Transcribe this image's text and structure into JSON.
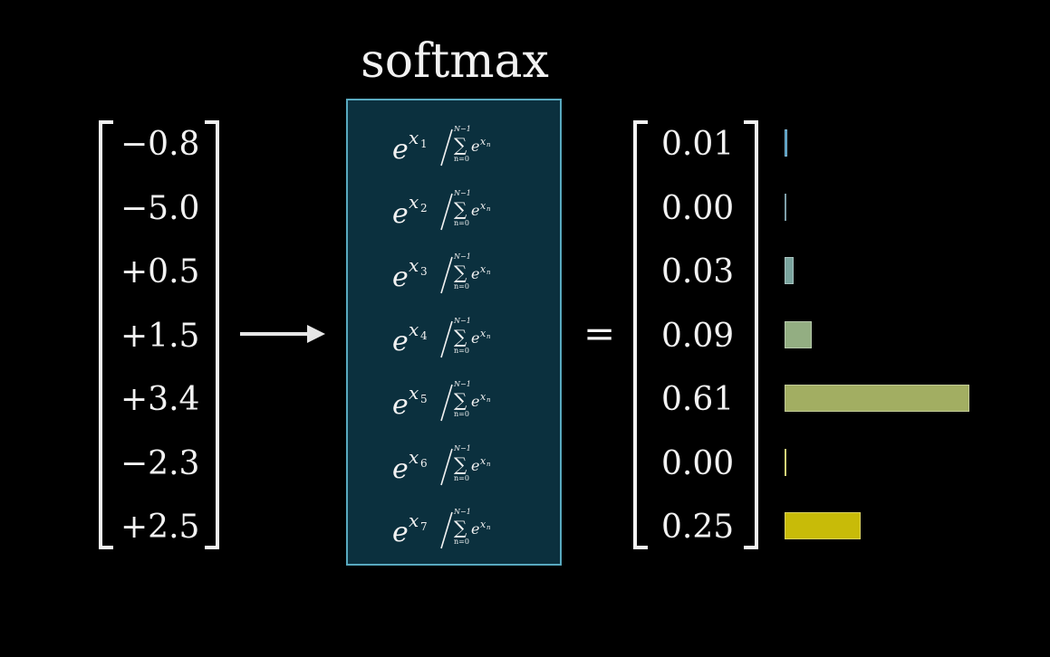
{
  "title": "softmax",
  "inputs": [
    "−0.8",
    "−5.0",
    "+0.5",
    "+1.5",
    "+3.4",
    "−2.3",
    "+2.5"
  ],
  "formula": {
    "base": "e",
    "subscripts": [
      "1",
      "2",
      "3",
      "4",
      "5",
      "6",
      "7"
    ],
    "sum_upper": "N−1",
    "sum_lower": "n=0",
    "sum_symbol": "∑",
    "denominator_term": "e",
    "denominator_exponent_var": "x",
    "denominator_exponent_sub": "n",
    "exponent_var": "x"
  },
  "equals": "=",
  "outputs": [
    {
      "label": "0.01",
      "value": 0.01,
      "color": "#3d8fb8"
    },
    {
      "label": "0.00",
      "value": 0.002,
      "color": "#3a6a7a"
    },
    {
      "label": "0.03",
      "value": 0.03,
      "color": "#7aa49e"
    },
    {
      "label": "0.09",
      "value": 0.09,
      "color": "#93ae82"
    },
    {
      "label": "0.61",
      "value": 0.61,
      "color": "#a2ae62"
    },
    {
      "label": "0.00",
      "value": 0.004,
      "color": "#bcbc30"
    },
    {
      "label": "0.25",
      "value": 0.25,
      "color": "#c8bb08"
    }
  ],
  "colors": {
    "box_fill": "#0b303e",
    "box_border": "#58a9bf",
    "text": "#f2f2f2"
  }
}
